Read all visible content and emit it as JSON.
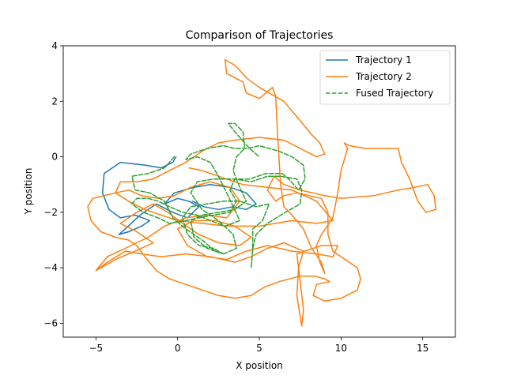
{
  "chart_data": {
    "type": "line",
    "title": "Comparison of Trajectories",
    "xlabel": "X position",
    "ylabel": "Y position",
    "xlim": [
      -7,
      17
    ],
    "ylim": [
      -6.5,
      4
    ],
    "xticks": [
      -5,
      0,
      5,
      10,
      15
    ],
    "yticks": [
      -6,
      -4,
      -2,
      0,
      2,
      4
    ],
    "grid": false,
    "legend_position": "top-right",
    "series": [
      {
        "name": "Trajectory 1",
        "color": "#1f77b4",
        "style": "solid",
        "points": [
          [
            -0.1,
            0
          ],
          [
            -0.3,
            -0.2
          ],
          [
            -1,
            -0.4
          ],
          [
            -2,
            -0.3
          ],
          [
            -3.5,
            -0.2
          ],
          [
            -4.5,
            -0.6
          ],
          [
            -4.6,
            -1.3
          ],
          [
            -4.2,
            -1.9
          ],
          [
            -3.5,
            -2.2
          ],
          [
            -2.6,
            -2.1
          ],
          [
            -1.7,
            -2.3
          ],
          [
            -2.2,
            -2.5
          ],
          [
            -3,
            -2.7
          ],
          [
            -3.6,
            -2.8
          ],
          [
            -3.2,
            -2.6
          ],
          [
            -2.3,
            -2.1
          ],
          [
            -1.3,
            -1.7
          ],
          [
            -0.3,
            -2
          ],
          [
            0.6,
            -2.2
          ],
          [
            1.3,
            -1.8
          ],
          [
            0.7,
            -1.6
          ],
          [
            0,
            -1.5
          ],
          [
            -0.8,
            -1.7
          ],
          [
            -0.2,
            -1.3
          ],
          [
            1,
            -1.1
          ],
          [
            2,
            -1
          ],
          [
            3.2,
            -1.1
          ],
          [
            4.2,
            -1.3
          ],
          [
            4.8,
            -1.7
          ],
          [
            4.2,
            -1.9
          ],
          [
            3.4,
            -1.8
          ],
          [
            2.5,
            -1.9
          ],
          [
            1.6,
            -1.8
          ],
          [
            0.9,
            -1.6
          ]
        ]
      },
      {
        "name": "Trajectory 2",
        "color": "#ff7f0e",
        "style": "solid",
        "points": [
          [
            -5,
            -4.1
          ],
          [
            -3.8,
            -3.7
          ],
          [
            -2.6,
            -3.4
          ],
          [
            -1.5,
            -3.1
          ],
          [
            -2.5,
            -2.7
          ],
          [
            -3.5,
            -2.4
          ],
          [
            -2.5,
            -2
          ],
          [
            -1.5,
            -1.7
          ],
          [
            -0.6,
            -2
          ],
          [
            0.3,
            -2.4
          ],
          [
            1.3,
            -2.8
          ],
          [
            2.5,
            -3.1
          ],
          [
            3.8,
            -3.2
          ],
          [
            4.5,
            -2.9
          ],
          [
            3.5,
            -2.5
          ],
          [
            2.3,
            -2.3
          ],
          [
            1,
            -2.3
          ],
          [
            0,
            -2.6
          ],
          [
            0.6,
            -3.2
          ],
          [
            1.8,
            -3.6
          ],
          [
            3,
            -3.7
          ],
          [
            4.2,
            -3.4
          ],
          [
            5.5,
            -3.2
          ],
          [
            7,
            -3.4
          ],
          [
            8.5,
            -3.5
          ],
          [
            9.5,
            -3.6
          ],
          [
            9.8,
            -3.2
          ],
          [
            8.8,
            -3.2
          ],
          [
            7.3,
            -3.5
          ],
          [
            7.5,
            -4.5
          ],
          [
            7.7,
            -5.5
          ],
          [
            7.6,
            -6.1
          ],
          [
            7.3,
            -5
          ],
          [
            7.4,
            -4
          ],
          [
            7.7,
            -3.4
          ],
          [
            6.5,
            -3.1
          ],
          [
            5.5,
            -3.3
          ],
          [
            4.5,
            -3.6
          ],
          [
            3.5,
            -3.8
          ],
          [
            2,
            -3.6
          ],
          [
            0.5,
            -3.5
          ],
          [
            -1,
            -3.6
          ],
          [
            -2.2,
            -3.5
          ],
          [
            -3.2,
            -3.4
          ],
          [
            -4.3,
            -3.8
          ],
          [
            -5,
            -4.1
          ],
          [
            -4.3,
            -3.6
          ],
          [
            -3.2,
            -3.3
          ],
          [
            -1.8,
            -2.9
          ],
          [
            -0.8,
            -2.5
          ],
          [
            0.5,
            -2.2
          ],
          [
            1.8,
            -2.1
          ],
          [
            3,
            -2.2
          ],
          [
            3.8,
            -1.6
          ],
          [
            3.2,
            -1.1
          ],
          [
            2,
            -0.9
          ],
          [
            0.8,
            -1.1
          ],
          [
            -0.2,
            -1.4
          ],
          [
            -1.2,
            -1.5
          ],
          [
            -2.2,
            -1.4
          ],
          [
            -3,
            -1.2
          ],
          [
            -3.8,
            -1.3
          ],
          [
            -5.2,
            -1.5
          ],
          [
            -5.5,
            -1.8
          ],
          [
            -5.3,
            -2.3
          ],
          [
            -4.7,
            -2.7
          ],
          [
            -3.8,
            -2.9
          ],
          [
            -3,
            -3
          ],
          [
            -2.5,
            -3.2
          ],
          [
            -2,
            -3.6
          ],
          [
            -1.3,
            -4.1
          ],
          [
            -0.5,
            -4.4
          ],
          [
            0.5,
            -4.6
          ],
          [
            1.5,
            -4.8
          ],
          [
            2.5,
            -5
          ],
          [
            3.5,
            -5.1
          ],
          [
            4.5,
            -5
          ],
          [
            5.3,
            -4.7
          ],
          [
            6.2,
            -4.5
          ],
          [
            7.5,
            -4.3
          ],
          [
            8.4,
            -4.3
          ],
          [
            9,
            -4.4
          ],
          [
            9.3,
            -4.5
          ],
          [
            8.5,
            -4.6
          ],
          [
            8.3,
            -5
          ],
          [
            9,
            -5.2
          ],
          [
            10,
            -5.1
          ],
          [
            11,
            -4.8
          ],
          [
            11.2,
            -4.4
          ],
          [
            11,
            -4
          ],
          [
            10.5,
            -3.8
          ],
          [
            9.5,
            -3.4
          ],
          [
            9.2,
            -2.8
          ],
          [
            9.2,
            -2
          ],
          [
            8.8,
            -1.5
          ],
          [
            7.3,
            -1.3
          ],
          [
            6.5,
            -1.4
          ],
          [
            6,
            -1.6
          ],
          [
            5.5,
            -1.2
          ],
          [
            5.9,
            -0.7
          ],
          [
            6.5,
            -1
          ],
          [
            7.5,
            -1.2
          ],
          [
            9,
            -1.4
          ],
          [
            10,
            -1.5
          ],
          [
            12,
            -1.4
          ],
          [
            13.5,
            -1.2
          ],
          [
            14.5,
            -1.1
          ],
          [
            15.3,
            -1
          ],
          [
            15.7,
            -1.4
          ],
          [
            15.8,
            -1.9
          ],
          [
            15.2,
            -2
          ],
          [
            14.7,
            -1.6
          ],
          [
            14.2,
            -0.8
          ],
          [
            13.7,
            -0.2
          ],
          [
            13.5,
            0.3
          ],
          [
            12.5,
            0.3
          ],
          [
            11.5,
            0.3
          ],
          [
            10.5,
            0.4
          ],
          [
            10.2,
            0.5
          ],
          [
            10.4,
            0.3
          ],
          [
            10,
            -0.5
          ],
          [
            9.8,
            -1.3
          ],
          [
            9.5,
            -2.2
          ],
          [
            8.8,
            -2.8
          ],
          [
            8.5,
            -3.2
          ],
          [
            8.7,
            -3.8
          ],
          [
            9,
            -4.2
          ],
          [
            8.8,
            -3.8
          ],
          [
            8.2,
            -3.3
          ],
          [
            7.7,
            -2.6
          ],
          [
            7,
            -2.1
          ],
          [
            6.5,
            -1.8
          ],
          [
            6.3,
            -1
          ],
          [
            6.2,
            0
          ],
          [
            6.1,
            1
          ],
          [
            6,
            2.2
          ],
          [
            5.8,
            2.5
          ],
          [
            5,
            2.1
          ],
          [
            4.2,
            2.3
          ],
          [
            4,
            2.7
          ],
          [
            3,
            3
          ],
          [
            2.9,
            3.5
          ],
          [
            3.5,
            3.3
          ],
          [
            4.3,
            2.8
          ],
          [
            5,
            2.5
          ],
          [
            6.5,
            2
          ],
          [
            7.5,
            1.3
          ],
          [
            8.2,
            0.8
          ],
          [
            8.7,
            0.5
          ],
          [
            9,
            0.1
          ],
          [
            8.5,
            0
          ],
          [
            7.5,
            0.3
          ],
          [
            6.5,
            0.6
          ],
          [
            5,
            0.7
          ],
          [
            3.5,
            0.6
          ],
          [
            2.5,
            0.5
          ],
          [
            1.5,
            0.2
          ],
          [
            0.5,
            -0.2
          ],
          [
            -0.5,
            -0.5
          ],
          [
            -1.5,
            -0.8
          ],
          [
            -2.5,
            -0.9
          ],
          [
            -3.5,
            -0.9
          ],
          [
            -3.8,
            -1.3
          ],
          [
            -3,
            -1.6
          ],
          [
            -2,
            -1.9
          ],
          [
            -1,
            -2.1
          ],
          [
            0,
            -2.3
          ],
          [
            1.5,
            -2.4
          ],
          [
            3,
            -2.5
          ],
          [
            5,
            -2.5
          ],
          [
            7,
            -2.3
          ],
          [
            8.5,
            -2.4
          ],
          [
            9.5,
            -2.3
          ],
          [
            8.5,
            -1.6
          ],
          [
            7,
            -1.2
          ],
          [
            5.5,
            -1.1
          ],
          [
            4,
            -1
          ],
          [
            2.5,
            -0.7
          ],
          [
            1.5,
            -0.5
          ],
          [
            0.7,
            -0.4
          ]
        ]
      },
      {
        "name": "Fused Trajectory",
        "color": "#2ca02c",
        "style": "dashed",
        "points": [
          [
            -0.2,
            0
          ],
          [
            -0.8,
            -0.4
          ],
          [
            -1.8,
            -0.6
          ],
          [
            -2.8,
            -0.7
          ],
          [
            -2.6,
            -1.2
          ],
          [
            -1.7,
            -1.3
          ],
          [
            -0.8,
            -1.6
          ],
          [
            -0.3,
            -2.2
          ],
          [
            0.5,
            -2.6
          ],
          [
            1.5,
            -3
          ],
          [
            2.3,
            -3.4
          ],
          [
            2.8,
            -3.5
          ],
          [
            2.2,
            -3.3
          ],
          [
            1.3,
            -3.2
          ],
          [
            0.6,
            -2.8
          ],
          [
            0.3,
            -2.2
          ],
          [
            0.8,
            -1.8
          ],
          [
            1.8,
            -1.7
          ],
          [
            2.8,
            -1.6
          ],
          [
            3.8,
            -1.6
          ],
          [
            4.8,
            -1.8
          ],
          [
            5.6,
            -1.7
          ],
          [
            5.2,
            -2.3
          ],
          [
            4.6,
            -2.6
          ],
          [
            4.6,
            -3.3
          ],
          [
            4.5,
            -4
          ],
          [
            4.6,
            -3.3
          ],
          [
            4.8,
            -2.8
          ],
          [
            5.5,
            -2.4
          ],
          [
            6.6,
            -2
          ],
          [
            7.5,
            -1.7
          ],
          [
            7.6,
            -1.2
          ],
          [
            7.3,
            -0.8
          ],
          [
            6.3,
            -0.7
          ],
          [
            5.5,
            -0.7
          ],
          [
            4.5,
            -0.9
          ],
          [
            3.5,
            -0.8
          ],
          [
            3.2,
            -1.2
          ],
          [
            3.6,
            -1.6
          ],
          [
            3.2,
            -2
          ],
          [
            2.2,
            -2.1
          ],
          [
            1.3,
            -2.2
          ],
          [
            0.5,
            -2.3
          ],
          [
            -0.5,
            -2.4
          ],
          [
            -1.2,
            -2.2
          ],
          [
            -2.1,
            -2
          ],
          [
            -2.8,
            -1.7
          ],
          [
            -2.5,
            -1.5
          ],
          [
            -1.8,
            -1.5
          ],
          [
            -1.2,
            -1.6
          ],
          [
            -0.5,
            -1.8
          ],
          [
            0.3,
            -2
          ],
          [
            1.2,
            -2.1
          ],
          [
            2,
            -2.3
          ],
          [
            2.9,
            -2.5
          ],
          [
            3.8,
            -2.3
          ],
          [
            3,
            -1.3
          ],
          [
            2.5,
            -0.7
          ],
          [
            2,
            -0.2
          ],
          [
            1.2,
            0
          ],
          [
            0.5,
            -0.1
          ],
          [
            0.8,
            0.1
          ],
          [
            1.8,
            0.3
          ],
          [
            2.8,
            0.4
          ],
          [
            3.5,
            0.3
          ],
          [
            4.3,
            0.3
          ],
          [
            5,
            0.4
          ],
          [
            6.2,
            0.2
          ],
          [
            7,
            0
          ],
          [
            7.7,
            -0.3
          ],
          [
            7.8,
            -0.8
          ],
          [
            7.4,
            -1.2
          ],
          [
            6.8,
            -0.8
          ],
          [
            6.4,
            -0.6
          ],
          [
            5.4,
            -0.6
          ],
          [
            4.4,
            -0.8
          ],
          [
            3.2,
            -0.8
          ],
          [
            2.2,
            -0.8
          ],
          [
            1.2,
            -0.9
          ],
          [
            0.8,
            -1.3
          ],
          [
            1.5,
            -1.9
          ],
          [
            2.5,
            -2.3
          ],
          [
            3.4,
            -2.8
          ],
          [
            3.6,
            -3.3
          ],
          [
            2.8,
            -3.5
          ],
          [
            1.8,
            -3.3
          ],
          [
            1,
            -2.9
          ],
          [
            0.8,
            -2.3
          ],
          [
            1.5,
            -2.1
          ],
          [
            2.5,
            -2
          ],
          [
            3.5,
            -1.9
          ],
          [
            4.2,
            -1.6
          ],
          [
            3.8,
            -1.1
          ],
          [
            3.4,
            -0.5
          ],
          [
            3.6,
            0
          ],
          [
            4.1,
            0.3
          ],
          [
            4,
            0.9
          ],
          [
            3.5,
            1.2
          ],
          [
            3.1,
            1.2
          ],
          [
            3.5,
            0.9
          ],
          [
            4.4,
            0.3
          ],
          [
            5,
            0
          ]
        ]
      }
    ]
  }
}
